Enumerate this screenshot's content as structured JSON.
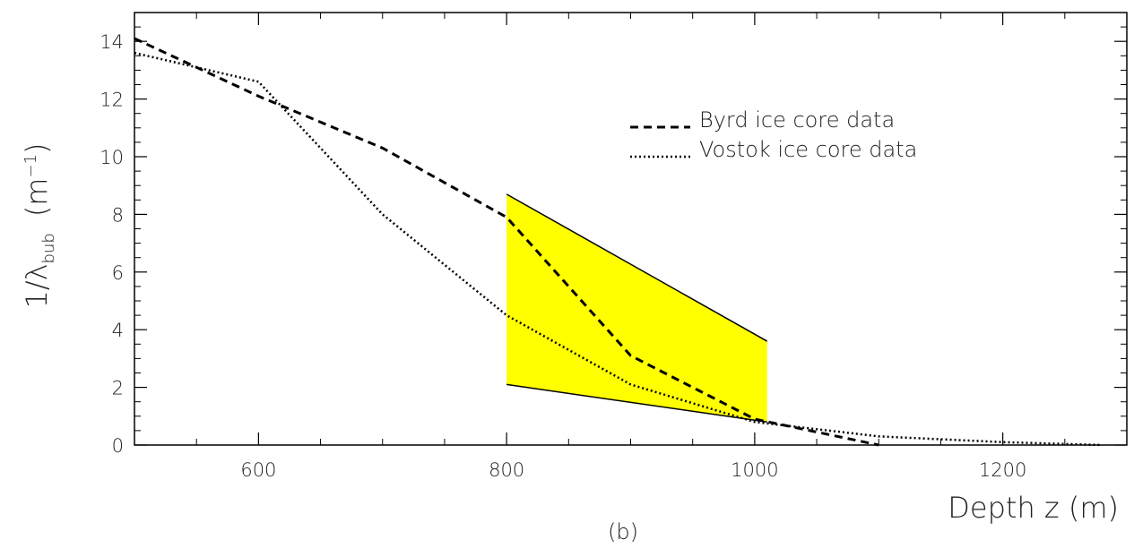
{
  "chart_data": {
    "type": "line",
    "xlabel": "Depth z (m)",
    "ylabel_main": "1/λ",
    "ylabel_sub": "bub",
    "ylabel_unit": "(m",
    "ylabel_unit_exp": "−1",
    "ylabel_unit_close": ")",
    "caption": "(b)",
    "xlim": [
      500,
      1300
    ],
    "ylim": [
      0,
      15
    ],
    "x_ticks": [
      600,
      800,
      1000,
      1200
    ],
    "y_ticks": [
      0,
      2,
      4,
      6,
      8,
      10,
      12,
      14
    ],
    "grid": false,
    "legend_position": "upper-right",
    "series": [
      {
        "name": "Byrd ice core data",
        "style": "dashed",
        "color": "#000000",
        "x": [
          500,
          600,
          700,
          800,
          900,
          1000,
          1100
        ],
        "y": [
          14.1,
          12.1,
          10.3,
          7.9,
          3.1,
          0.9,
          0.0
        ]
      },
      {
        "name": "Vostok ice core data",
        "style": "dotted",
        "color": "#000000",
        "x": [
          500,
          600,
          700,
          800,
          900,
          1000,
          1100,
          1200,
          1280
        ],
        "y": [
          13.6,
          12.6,
          8.0,
          4.5,
          2.1,
          0.8,
          0.3,
          0.1,
          0.0
        ]
      }
    ],
    "band": {
      "color": "#ffff00",
      "x": [
        800,
        1010
      ],
      "upper": [
        8.7,
        3.6
      ],
      "lower": [
        2.1,
        0.8
      ]
    }
  }
}
